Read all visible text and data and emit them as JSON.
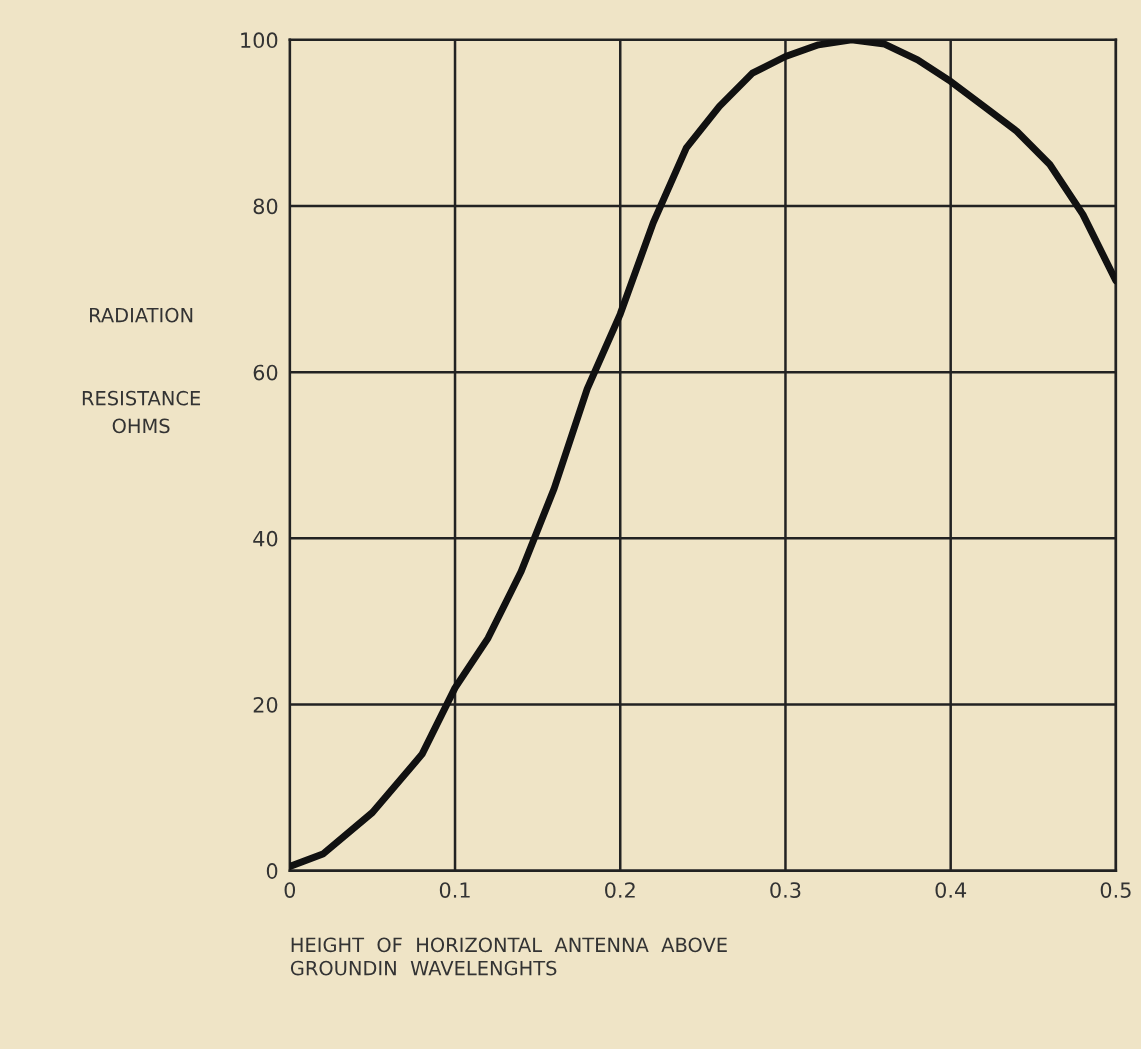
{
  "chart_data": {
    "type": "line",
    "xlabel": "HEIGHT  OF  HORIZONTAL  ANTENNA  ABOVE\nGROUNDIN  WAVELENGHTS",
    "ylabel": "RADIATION\n\n\nRESISTANCE\nOHMS",
    "x": [
      0,
      0.02,
      0.05,
      0.08,
      0.1,
      0.12,
      0.14,
      0.16,
      0.18,
      0.2,
      0.22,
      0.24,
      0.26,
      0.28,
      0.3,
      0.32,
      0.34,
      0.36,
      0.38,
      0.4,
      0.42,
      0.44,
      0.46,
      0.48,
      0.5
    ],
    "series": [
      {
        "color": "#111111",
        "values": [
          0.5,
          2,
          7,
          14,
          22,
          28,
          36,
          46,
          58,
          67,
          78,
          87,
          92,
          96,
          98,
          99.4,
          100,
          99.5,
          97.6,
          95,
          92,
          89,
          85,
          79,
          71
        ]
      }
    ],
    "xlim": [
      0,
      0.5
    ],
    "ylim": [
      0,
      100
    ],
    "xticks": [
      0,
      0.1,
      0.2,
      0.3,
      0.4,
      0.5
    ],
    "yticks": [
      0,
      20,
      40,
      60,
      80,
      100
    ],
    "grid": true,
    "legend": false,
    "marker": "none",
    "line_style": "solid"
  }
}
